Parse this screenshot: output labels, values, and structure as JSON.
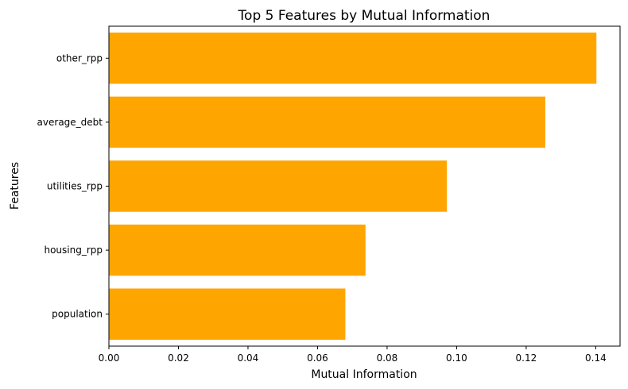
{
  "chart_data": {
    "type": "bar",
    "orientation": "horizontal",
    "title": "Top 5 Features by Mutual Information",
    "xlabel": "Mutual Information",
    "ylabel": "Features",
    "categories": [
      "other_rpp",
      "average_debt",
      "utilities_rpp",
      "housing_rpp",
      "population"
    ],
    "values": [
      0.1402,
      0.1255,
      0.0972,
      0.0738,
      0.068
    ],
    "xlim": [
      0,
      0.147
    ],
    "xticks": [
      "0.00",
      "0.02",
      "0.04",
      "0.06",
      "0.08",
      "0.10",
      "0.12",
      "0.14"
    ],
    "bar_color": "#FFA500",
    "grid": false,
    "legend": "none"
  }
}
